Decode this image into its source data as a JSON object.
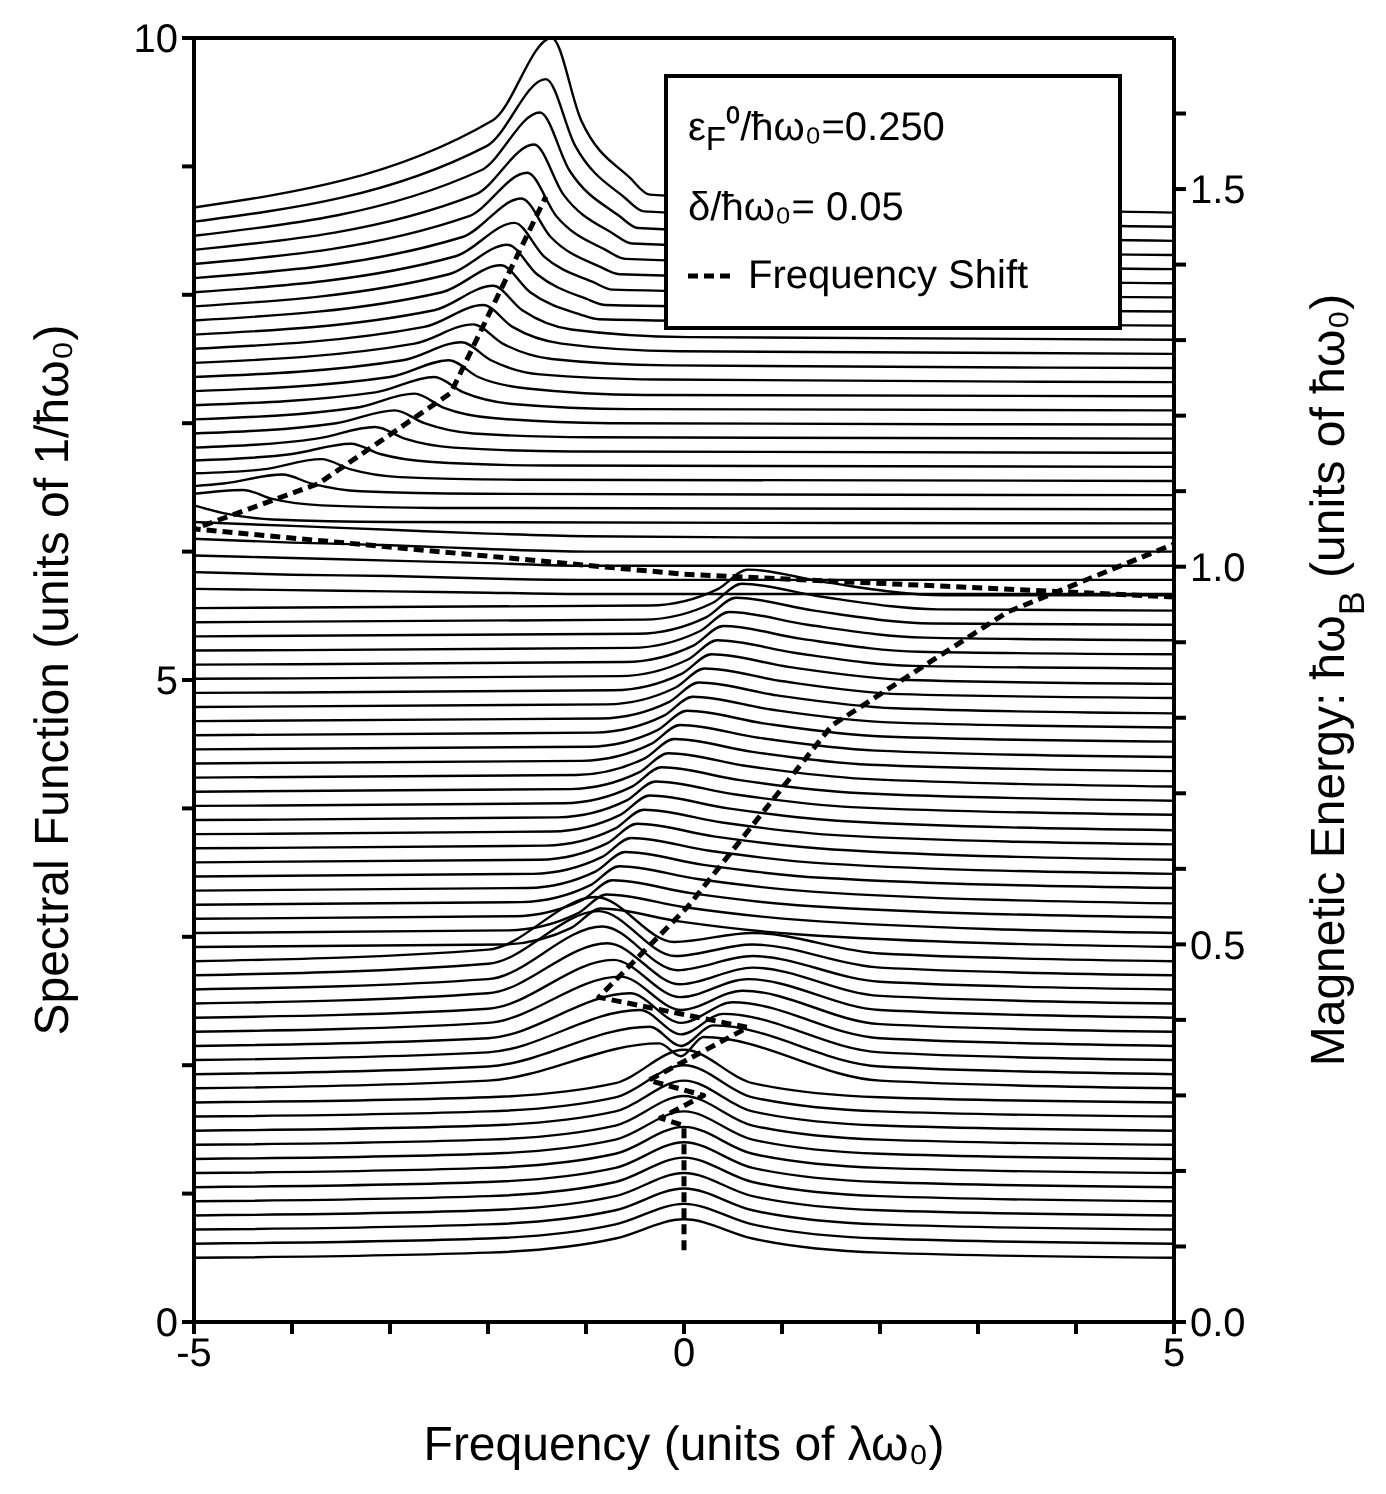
{
  "chart_data": {
    "type": "line",
    "xlabel": "Frequency (units of λω₀)",
    "ylabel": "Spectral Function (units of 1/ħω₀)",
    "y2label": "Magnetic Energy: ħω$_{B}$ (units of ħω₀)",
    "annotations": [
      "ε$_{F}$⁰/ħω₀=0.250",
      "δ/ħω₀= 0.05"
    ],
    "legend": "top right",
    "xlim": [
      -5,
      5
    ],
    "xticks": [
      -5,
      {
        "value": -4,
        "label": null
      },
      {
        "value": -3,
        "label": null
      },
      {
        "value": -2,
        "label": null
      },
      {
        "value": -1,
        "label": null
      },
      0,
      {
        "value": 1,
        "label": null
      },
      {
        "value": 2,
        "label": null
      },
      {
        "value": 3,
        "label": null
      },
      {
        "value": 4,
        "label": null
      },
      5
    ],
    "ylim": [
      0,
      10
    ],
    "yticks": [
      0,
      {
        "value": 1,
        "label": null
      },
      {
        "value": 2,
        "label": null
      },
      {
        "value": 3,
        "label": null
      },
      {
        "value": 4,
        "label": null
      },
      5,
      {
        "value": 6,
        "label": null
      },
      {
        "value": 7,
        "label": null
      },
      {
        "value": 8,
        "label": null
      },
      {
        "value": 9,
        "label": null
      },
      10
    ],
    "y2lim": [
      0,
      1.7
    ],
    "y2ticks": [
      {
        "value": 0,
        "label": "0.0"
      },
      {
        "value": 0.1,
        "label": null
      },
      {
        "value": 0.2,
        "label": null
      },
      {
        "value": 0.3,
        "label": null
      },
      {
        "value": 0.4,
        "label": null
      },
      {
        "value": 0.5,
        "label": "0.5"
      },
      {
        "value": 0.6,
        "label": null
      },
      {
        "value": 0.7,
        "label": null
      },
      {
        "value": 0.8,
        "label": null
      },
      {
        "value": 0.9,
        "label": null
      },
      {
        "value": 1,
        "label": "1.0"
      },
      {
        "value": 1.1,
        "label": null
      },
      {
        "value": 1.2,
        "label": null
      },
      {
        "value": 1.3,
        "label": null
      },
      {
        "value": 1.4,
        "label": null
      },
      {
        "value": 1.5,
        "label": "1.5"
      },
      {
        "value": 1.6,
        "label": null
      }
    ],
    "series": [
      {
        "color": "#000000",
        "x": [
          -5,
          -2,
          -0.7,
          0,
          0.7,
          2,
          5
        ],
        "values": [
          0.5,
          0.54,
          0.65,
          0.8,
          0.65,
          0.54,
          0.5
        ]
      },
      {
        "color": "#000000",
        "x": [
          -5,
          -2,
          -0.7,
          0,
          0.7,
          2,
          5
        ],
        "values": [
          0.61,
          0.65,
          0.76,
          0.92,
          0.76,
          0.65,
          0.61
        ]
      },
      {
        "color": "#000000",
        "x": [
          -5,
          -2,
          -0.7,
          0,
          0.7,
          2,
          5
        ],
        "values": [
          0.72,
          0.76,
          0.87,
          1.04,
          0.87,
          0.76,
          0.72
        ]
      },
      {
        "color": "#000000",
        "x": [
          -5,
          -2,
          -0.7,
          0,
          0.7,
          2,
          5
        ],
        "values": [
          0.83,
          0.87,
          0.98,
          1.16,
          0.98,
          0.87,
          0.83
        ]
      },
      {
        "color": "#000000",
        "x": [
          -5,
          -2,
          -0.7,
          0,
          0.7,
          2,
          5
        ],
        "values": [
          0.94,
          0.98,
          1.09,
          1.28,
          1.09,
          0.98,
          0.94
        ]
      },
      {
        "color": "#000000",
        "x": [
          -5,
          -2,
          -0.7,
          0,
          0.7,
          2,
          5
        ],
        "values": [
          1.05,
          1.09,
          1.2,
          1.4,
          1.2,
          1.09,
          1.05
        ]
      },
      {
        "color": "#000000",
        "x": [
          -5,
          -2,
          -0.7,
          0,
          0.7,
          2,
          5
        ],
        "values": [
          1.16,
          1.2,
          1.31,
          1.52,
          1.31,
          1.2,
          1.16
        ]
      },
      {
        "color": "#000000",
        "x": [
          -5,
          -2,
          -0.7,
          0,
          0.7,
          2,
          5
        ],
        "values": [
          1.27,
          1.31,
          1.42,
          1.64,
          1.42,
          1.31,
          1.27
        ]
      },
      {
        "color": "#000000",
        "x": [
          -5,
          -2,
          -0.7,
          0,
          0.7,
          2,
          5
        ],
        "values": [
          1.38,
          1.42,
          1.53,
          1.76,
          1.53,
          1.42,
          1.38
        ]
      },
      {
        "color": "#000000",
        "x": [
          -5,
          -2,
          -0.7,
          0,
          0.7,
          2,
          5
        ],
        "values": [
          1.49,
          1.53,
          1.64,
          1.88,
          1.64,
          1.53,
          1.49
        ]
      },
      {
        "color": "#000000",
        "x": [
          -5,
          -2,
          -0.7,
          0,
          0.7,
          2,
          5
        ],
        "values": [
          1.6,
          1.64,
          1.75,
          2.0,
          1.75,
          1.64,
          1.6
        ]
      },
      {
        "color": "#000000",
        "x": [
          -5,
          -2,
          -0.7,
          0,
          0.7,
          2,
          5
        ],
        "values": [
          1.71,
          1.75,
          1.86,
          2.12,
          1.86,
          1.75,
          1.71
        ]
      },
      {
        "color": "#000000",
        "x": [
          -5,
          -2,
          -0.25,
          -0.03,
          0.2,
          2,
          5
        ],
        "values": [
          1.82,
          1.88,
          2.17,
          2.07,
          2.22,
          1.88,
          1.82
        ]
      },
      {
        "color": "#000000",
        "x": [
          -5,
          -2,
          -0.35,
          -0.03,
          0.3,
          2,
          5
        ],
        "values": [
          1.93,
          1.99,
          2.3,
          2.15,
          2.31,
          1.99,
          1.93
        ]
      },
      {
        "color": "#000000",
        "x": [
          -5,
          -2,
          -0.45,
          -0.03,
          0.4,
          2,
          5
        ],
        "values": [
          2.04,
          2.1,
          2.43,
          2.24,
          2.4,
          2.1,
          2.04
        ]
      },
      {
        "color": "#000000",
        "x": [
          -5,
          -2,
          -0.55,
          -0.03,
          0.5,
          2,
          5
        ],
        "values": [
          2.15,
          2.21,
          2.56,
          2.33,
          2.49,
          2.21,
          2.15
        ]
      },
      {
        "color": "#000000",
        "x": [
          -5,
          -2,
          -0.65,
          -0.03,
          0.6,
          2,
          5
        ],
        "values": [
          2.26,
          2.33,
          2.69,
          2.43,
          2.58,
          2.32,
          2.26
        ]
      },
      {
        "color": "#000000",
        "x": [
          -5,
          -2,
          -0.72,
          -0.04,
          0.65,
          2,
          5
        ],
        "values": [
          2.37,
          2.44,
          2.82,
          2.53,
          2.67,
          2.43,
          2.37
        ]
      },
      {
        "color": "#000000",
        "x": [
          -5,
          -2,
          -0.78,
          -0.04,
          0.7,
          2,
          5
        ],
        "values": [
          2.48,
          2.56,
          2.95,
          2.63,
          2.76,
          2.54,
          2.48
        ]
      },
      {
        "color": "#000000",
        "x": [
          -5,
          -2,
          -0.83,
          -0.07,
          0.7,
          2,
          5
        ],
        "values": [
          2.59,
          2.67,
          3.08,
          2.74,
          2.85,
          2.65,
          2.59
        ]
      },
      {
        "color": "#000000",
        "x": [
          -5,
          -2,
          -0.87,
          -0.09,
          0.7,
          2,
          5
        ],
        "values": [
          2.7,
          2.79,
          3.2,
          2.85,
          2.94,
          2.76,
          2.7
        ]
      },
      {
        "color": "#000000",
        "x": [
          -5,
          -2,
          -0.9,
          -0.1,
          0.7,
          2,
          5
        ],
        "values": [
          2.81,
          2.9,
          3.31,
          2.96,
          3.03,
          2.87,
          2.81
        ]
      },
      {
        "color": "#000000",
        "x": [
          -5,
          -1.85,
          -1.15,
          -0.85,
          -0.05,
          1.15,
          5
        ],
        "values": [
          2.92,
          2.94,
          3.07,
          3.22,
          3.12,
          3.02,
          2.92
        ]
      },
      {
        "color": "#000000",
        "x": [
          -5,
          -1.79,
          -1.09,
          -0.79,
          0.01,
          1.21,
          5
        ],
        "values": [
          3.03,
          3.05,
          3.18,
          3.33,
          3.23,
          3.13,
          3.03
        ]
      },
      {
        "color": "#000000",
        "x": [
          -5,
          -1.73,
          -1.03,
          -0.73,
          0.07,
          1.27,
          5
        ],
        "values": [
          3.14,
          3.16,
          3.29,
          3.44,
          3.34,
          3.24,
          3.15
        ]
      },
      {
        "color": "#000000",
        "x": [
          -5,
          -1.66,
          -0.96,
          -0.66,
          0.14,
          1.34,
          5
        ],
        "values": [
          3.25,
          3.27,
          3.4,
          3.55,
          3.45,
          3.35,
          3.26
        ]
      },
      {
        "color": "#000000",
        "x": [
          -5,
          -1.6,
          -0.9,
          -0.6,
          0.2,
          1.4,
          5
        ],
        "values": [
          3.36,
          3.38,
          3.51,
          3.66,
          3.56,
          3.46,
          3.38
        ]
      },
      {
        "color": "#000000",
        "x": [
          -5,
          -1.54,
          -0.84,
          -0.54,
          0.26,
          1.46,
          5
        ],
        "values": [
          3.47,
          3.49,
          3.62,
          3.77,
          3.67,
          3.57,
          3.49
        ]
      },
      {
        "color": "#000000",
        "x": [
          -5,
          -1.48,
          -0.78,
          -0.48,
          0.32,
          1.52,
          5
        ],
        "values": [
          3.58,
          3.6,
          3.73,
          3.88,
          3.78,
          3.68,
          3.6
        ]
      },
      {
        "color": "#000000",
        "x": [
          -5,
          -1.41,
          -0.71,
          -0.41,
          0.39,
          1.59,
          5
        ],
        "values": [
          3.69,
          3.71,
          3.84,
          3.99,
          3.89,
          3.79,
          3.72
        ]
      },
      {
        "color": "#000000",
        "x": [
          -5,
          -1.35,
          -0.65,
          -0.35,
          0.45,
          1.65,
          5
        ],
        "values": [
          3.8,
          3.82,
          3.95,
          4.1,
          4.0,
          3.9,
          3.83
        ]
      },
      {
        "color": "#000000",
        "x": [
          -5,
          -1.29,
          -0.59,
          -0.29,
          0.51,
          1.71,
          5
        ],
        "values": [
          3.91,
          3.93,
          4.06,
          4.21,
          4.11,
          4.01,
          3.95
        ]
      },
      {
        "color": "#000000",
        "x": [
          -5,
          -1.23,
          -0.53,
          -0.23,
          0.57,
          1.77,
          5
        ],
        "values": [
          4.02,
          4.04,
          4.17,
          4.32,
          4.22,
          4.12,
          4.06
        ]
      },
      {
        "color": "#000000",
        "x": [
          -5,
          -1.16,
          -0.46,
          -0.16,
          0.64,
          1.84,
          5
        ],
        "values": [
          4.13,
          4.15,
          4.28,
          4.43,
          4.33,
          4.23,
          4.17
        ]
      },
      {
        "color": "#000000",
        "x": [
          -5,
          -1.1,
          -0.4,
          -0.1,
          0.7,
          1.9,
          5
        ],
        "values": [
          4.24,
          4.26,
          4.39,
          4.54,
          4.44,
          4.34,
          4.29
        ]
      },
      {
        "color": "#000000",
        "x": [
          -5,
          -1.04,
          -0.34,
          -0.04,
          0.76,
          1.96,
          5
        ],
        "values": [
          4.35,
          4.37,
          4.5,
          4.65,
          4.55,
          4.45,
          4.4
        ]
      },
      {
        "color": "#000000",
        "x": [
          -5,
          -0.97,
          -0.27,
          0.03,
          0.83,
          2.03,
          5
        ],
        "values": [
          4.46,
          4.48,
          4.61,
          4.76,
          4.66,
          4.56,
          4.52
        ]
      },
      {
        "color": "#000000",
        "x": [
          -5,
          -0.91,
          -0.21,
          0.09,
          0.89,
          2.09,
          5
        ],
        "values": [
          4.57,
          4.59,
          4.72,
          4.87,
          4.77,
          4.67,
          4.63
        ]
      },
      {
        "color": "#000000",
        "x": [
          -5,
          -0.85,
          -0.15,
          0.15,
          0.95,
          2.15,
          5
        ],
        "values": [
          4.68,
          4.7,
          4.83,
          4.98,
          4.88,
          4.78,
          4.74
        ]
      },
      {
        "color": "#000000",
        "x": [
          -5,
          -0.79,
          -0.09,
          0.21,
          1.01,
          2.21,
          5
        ],
        "values": [
          4.79,
          4.81,
          4.94,
          5.09,
          4.99,
          4.89,
          4.86
        ]
      },
      {
        "color": "#000000",
        "x": [
          -5,
          -0.72,
          -0.02,
          0.28,
          1.08,
          2.28,
          5
        ],
        "values": [
          4.9,
          4.92,
          5.05,
          5.2,
          5.1,
          5.0,
          4.97
        ]
      },
      {
        "color": "#000000",
        "x": [
          -5,
          -0.66,
          0.04,
          0.34,
          1.14,
          2.34,
          5
        ],
        "values": [
          5.01,
          5.03,
          5.16,
          5.31,
          5.21,
          5.11,
          5.09
        ]
      },
      {
        "color": "#000000",
        "x": [
          -5,
          -0.6,
          0.1,
          0.4,
          1.2,
          2.4,
          5
        ],
        "values": [
          5.12,
          5.14,
          5.27,
          5.42,
          5.32,
          5.22,
          5.2
        ]
      },
      {
        "color": "#000000",
        "x": [
          -5,
          -0.54,
          0.16,
          0.46,
          1.26,
          2.46,
          5
        ],
        "values": [
          5.23,
          5.25,
          5.38,
          5.53,
          5.43,
          5.33,
          5.31
        ]
      },
      {
        "color": "#000000",
        "x": [
          -5,
          -0.47,
          0.23,
          0.53,
          1.33,
          2.53,
          5
        ],
        "values": [
          5.34,
          5.36,
          5.49,
          5.64,
          5.54,
          5.44,
          5.43
        ]
      },
      {
        "color": "#000000",
        "x": [
          -5,
          -0.41,
          0.29,
          0.59,
          1.39,
          2.59,
          5
        ],
        "values": [
          5.45,
          5.47,
          5.6,
          5.75,
          5.65,
          5.55,
          5.54
        ]
      },
      {
        "color": "#000000",
        "x": [
          -5,
          -0.35,
          0.35,
          0.65,
          1.45,
          2.65,
          5
        ],
        "values": [
          5.56,
          5.58,
          5.71,
          5.86,
          5.76,
          5.66,
          5.66
        ]
      },
      {
        "color": "#000000",
        "x": [
          -5,
          -4,
          -3,
          -2,
          -1,
          1,
          5
        ],
        "values": [
          5.71,
          5.7,
          5.69,
          5.68,
          5.67,
          5.67,
          5.67
        ]
      },
      {
        "color": "#000000",
        "x": [
          -5,
          -4,
          -3,
          -2,
          -1,
          1,
          5
        ],
        "values": [
          5.84,
          5.82,
          5.81,
          5.79,
          5.78,
          5.78,
          5.78
        ]
      },
      {
        "color": "#000000",
        "x": [
          -5,
          -4,
          -3,
          -2,
          -1,
          1,
          5
        ],
        "values": [
          5.97,
          5.95,
          5.93,
          5.91,
          5.89,
          5.89,
          5.89
        ]
      },
      {
        "color": "#000000",
        "x": [
          -5,
          -4,
          -3,
          -2,
          -1,
          1,
          5
        ],
        "values": [
          6.1,
          6.07,
          6.05,
          6.02,
          6.0,
          6.0,
          6.0
        ]
      },
      {
        "color": "#000000",
        "x": [
          -5,
          -4,
          -3,
          -2,
          -1,
          1,
          5
        ],
        "values": [
          6.23,
          6.2,
          6.17,
          6.14,
          6.12,
          6.11,
          6.11
        ]
      },
      {
        "color": "#000000",
        "x": [
          -5,
          -4.7,
          -4.2,
          -3,
          5
        ],
        "values": [
          6.36,
          6.3,
          6.25,
          6.23,
          6.22
        ]
      },
      {
        "color": "#000000",
        "x": [
          -5,
          -4.5,
          -4.2,
          -3.7,
          -2.5,
          5
        ],
        "values": [
          6.45,
          6.48,
          6.41,
          6.36,
          6.34,
          6.33
        ]
      },
      {
        "color": "#000000",
        "x": [
          -5,
          -4.7,
          -4.1,
          -3.8,
          -3.3,
          -2.1,
          5
        ],
        "values": [
          6.51,
          6.53,
          6.6,
          6.53,
          6.47,
          6.45,
          6.44
        ]
      },
      {
        "color": "#000000",
        "x": [
          -5,
          -4.3,
          -3.7,
          -3.4,
          -2.9,
          -1.7,
          5
        ],
        "values": [
          6.61,
          6.64,
          6.72,
          6.64,
          6.58,
          6.56,
          6.55
        ]
      },
      {
        "color": "#000000",
        "x": [
          -5,
          -4,
          -3.4,
          -3.1,
          -2.6,
          -1.4,
          5
        ],
        "values": [
          6.71,
          6.76,
          6.84,
          6.76,
          6.7,
          6.67,
          6.66
        ]
      },
      {
        "color": "#000000",
        "x": [
          -5,
          -3.75,
          -3.15,
          -2.85,
          -2.35,
          -1.15,
          5
        ],
        "values": [
          6.81,
          6.88,
          6.97,
          6.88,
          6.81,
          6.78,
          6.77
        ]
      },
      {
        "color": "#000000",
        "x": [
          -5,
          -3.55,
          -2.95,
          -2.65,
          -2.15,
          -0.95,
          5
        ],
        "values": [
          6.92,
          7.0,
          7.1,
          7.0,
          6.92,
          6.89,
          6.88
        ]
      },
      {
        "color": "#000000",
        "x": [
          -5,
          -3.35,
          -2.75,
          -2.45,
          -1.95,
          -0.75,
          5
        ],
        "values": [
          7.03,
          7.12,
          7.23,
          7.12,
          7.04,
          7.0,
          6.99
        ]
      },
      {
        "color": "#000000",
        "x": [
          -5,
          -3.15,
          -2.55,
          -2.25,
          -1.75,
          -0.55,
          5
        ],
        "values": [
          7.14,
          7.24,
          7.36,
          7.24,
          7.15,
          7.11,
          7.1
        ]
      },
      {
        "color": "#000000",
        "x": [
          -5,
          -3,
          -2.4,
          -2.1,
          -1.6,
          -0.4,
          5
        ],
        "values": [
          7.25,
          7.36,
          7.49,
          7.36,
          7.27,
          7.22,
          7.21
        ]
      },
      {
        "color": "#000000",
        "x": [
          -5,
          -2.87,
          -2.27,
          -1.97,
          -1.47,
          -0.27,
          5
        ],
        "values": [
          7.36,
          7.49,
          7.63,
          7.49,
          7.38,
          7.34,
          7.32
        ]
      },
      {
        "color": "#000000",
        "x": [
          -5,
          -2.75,
          -2.15,
          -1.85,
          -1.35,
          -0.15,
          5
        ],
        "values": [
          7.47,
          7.62,
          7.77,
          7.62,
          7.5,
          7.45,
          7.43
        ]
      },
      {
        "color": "#000000",
        "x": [
          -5,
          -2.65,
          -2.05,
          -1.75,
          -1.25,
          -0.05,
          5
        ],
        "values": [
          7.58,
          7.75,
          7.92,
          7.75,
          7.62,
          7.56,
          7.54
        ]
      },
      {
        "color": "#000000",
        "x": [
          -5,
          -2.55,
          -1.95,
          -1.65,
          -1.15,
          0.05,
          5
        ],
        "values": [
          7.69,
          7.88,
          8.07,
          7.88,
          7.73,
          7.67,
          7.65
        ]
      },
      {
        "color": "#000000",
        "x": [
          -5,
          -2.47,
          -1.87,
          -1.57,
          -1.07,
          -0.87,
          5
        ],
        "values": [
          7.8,
          8.02,
          8.23,
          8.02,
          7.85,
          7.81,
          7.76
        ]
      },
      {
        "color": "#000000",
        "x": [
          -5,
          -2.4,
          -1.8,
          -1.5,
          -1,
          -0.8,
          5
        ],
        "values": [
          7.91,
          8.16,
          8.39,
          8.16,
          7.97,
          7.92,
          7.87
        ]
      },
      {
        "color": "#000000",
        "x": [
          -5,
          -2.33,
          -1.73,
          -1.43,
          -0.93,
          -0.73,
          5
        ],
        "values": [
          8.02,
          8.3,
          8.56,
          8.3,
          8.1,
          8.04,
          7.98
        ]
      },
      {
        "color": "#000000",
        "x": [
          -5,
          -2.26,
          -1.66,
          -1.36,
          -0.86,
          -0.66,
          5
        ],
        "values": [
          8.13,
          8.45,
          8.75,
          8.45,
          8.22,
          8.16,
          8.09
        ]
      },
      {
        "color": "#000000",
        "x": [
          -5,
          -2.2,
          -1.6,
          -1.3,
          -0.8,
          -0.6,
          5
        ],
        "values": [
          8.24,
          8.61,
          8.95,
          8.61,
          8.35,
          8.28,
          8.2
        ]
      },
      {
        "color": "#000000",
        "x": [
          -5,
          -2.13,
          -1.53,
          -1.23,
          -0.73,
          -0.53,
          5
        ],
        "values": [
          8.35,
          8.78,
          9.17,
          8.78,
          8.48,
          8.4,
          8.31
        ]
      },
      {
        "color": "#000000",
        "x": [
          -5,
          -2.07,
          -1.47,
          -1.17,
          -0.67,
          -0.47,
          5
        ],
        "values": [
          8.46,
          8.97,
          9.42,
          8.97,
          8.62,
          8.52,
          8.42
        ]
      },
      {
        "color": "#000000",
        "x": [
          -5,
          -2.01,
          -1.41,
          -1.11,
          -0.61,
          -0.41,
          5
        ],
        "values": [
          8.57,
          9.16,
          9.68,
          9.16,
          8.76,
          8.65,
          8.53
        ]
      },
      {
        "color": "#000000",
        "x": [
          -5,
          -1.95,
          -1.35,
          -1.05,
          -0.55,
          -0.35,
          5
        ],
        "values": [
          8.68,
          9.36,
          10,
          9.36,
          8.91,
          8.78,
          8.64
        ]
      },
      {
        "name": "Frequency Shift",
        "color": "#000000",
        "line_style": "dashed",
        "axis": "y2",
        "x": [
          0,
          0,
          -0.24,
          0.2,
          -0.36,
          0.65,
          -0.87,
          0.04,
          1.51,
          3.3,
          5
        ],
        "values": [
          0.095,
          0.26,
          0.27,
          0.3,
          0.32,
          0.39,
          0.43,
          0.55,
          0.79,
          0.94,
          1.03
        ]
      },
      {
        "color": "#000000",
        "line_style": "dashed",
        "axis": "y2",
        "x": [
          5,
          0,
          -5,
          -3.73,
          -2.38,
          -1.41
        ],
        "values": [
          0.96,
          0.99,
          1.05,
          1.11,
          1.23,
          1.49
        ]
      }
    ]
  }
}
